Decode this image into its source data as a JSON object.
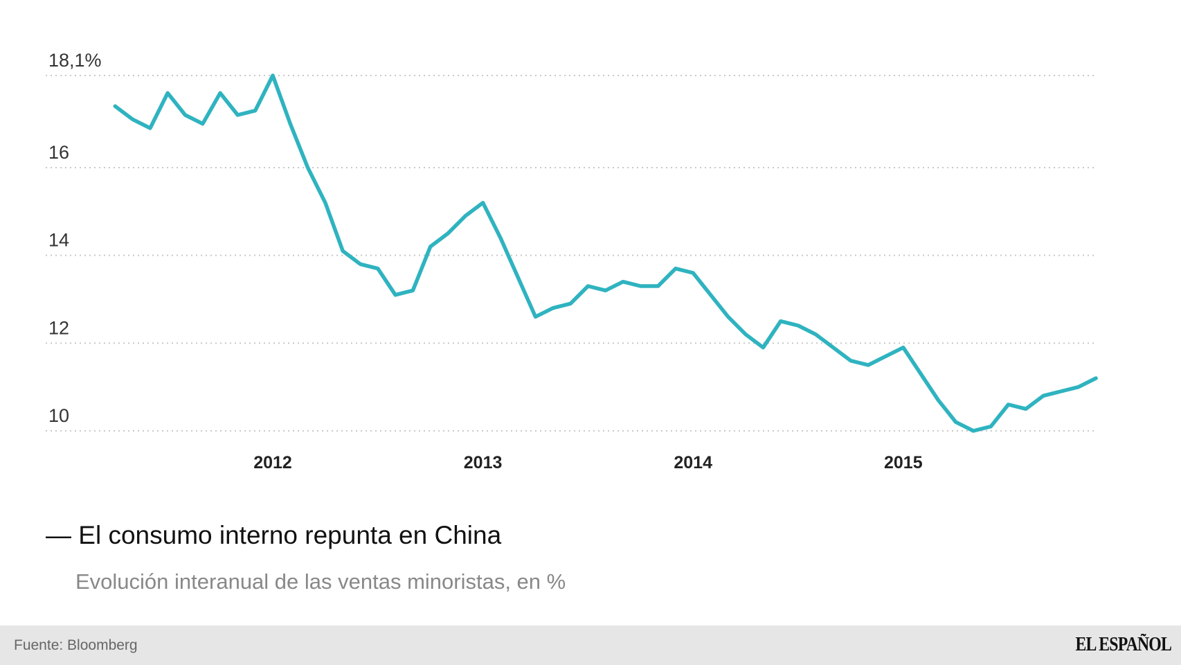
{
  "chart_data": {
    "type": "line",
    "title": "El consumo interno repunta en China",
    "subtitle": "Evolución interanual de las ventas minoristas, en %",
    "x": [
      "2011-03",
      "2011-04",
      "2011-05",
      "2011-06",
      "2011-07",
      "2011-08",
      "2011-09",
      "2011-10",
      "2011-11",
      "2011-12",
      "2012-01",
      "2012-02",
      "2012-03",
      "2012-04",
      "2012-05",
      "2012-06",
      "2012-07",
      "2012-08",
      "2012-09",
      "2012-10",
      "2012-11",
      "2012-12",
      "2013-01",
      "2013-02",
      "2013-03",
      "2013-04",
      "2013-05",
      "2013-06",
      "2013-07",
      "2013-08",
      "2013-09",
      "2013-10",
      "2013-11",
      "2013-12",
      "2014-01",
      "2014-02",
      "2014-03",
      "2014-04",
      "2014-05",
      "2014-06",
      "2014-07",
      "2014-08",
      "2014-09",
      "2014-10",
      "2014-11",
      "2014-12",
      "2015-01",
      "2015-02",
      "2015-03",
      "2015-04",
      "2015-05",
      "2015-06",
      "2015-07",
      "2015-08",
      "2015-09",
      "2015-10",
      "2015-11"
    ],
    "values": [
      17.4,
      17.1,
      16.9,
      17.7,
      17.2,
      17.0,
      17.7,
      17.2,
      17.3,
      18.1,
      17.0,
      16.0,
      15.2,
      14.1,
      13.8,
      13.7,
      13.1,
      13.2,
      14.2,
      14.5,
      14.9,
      15.2,
      14.4,
      13.5,
      12.6,
      12.8,
      12.9,
      13.3,
      13.2,
      13.4,
      13.3,
      13.3,
      13.7,
      13.6,
      13.1,
      12.6,
      12.2,
      11.9,
      12.5,
      12.4,
      12.2,
      11.9,
      11.6,
      11.5,
      11.7,
      11.9,
      11.3,
      10.7,
      10.2,
      10.0,
      10.1,
      10.6,
      10.5,
      10.8,
      10.9,
      11.0,
      11.2
    ],
    "ylim": [
      10,
      18.1
    ],
    "yticks": [
      {
        "value": 18.1,
        "label": "18,1%"
      },
      {
        "value": 16,
        "label": "16"
      },
      {
        "value": 14,
        "label": "14"
      },
      {
        "value": 12,
        "label": "12"
      },
      {
        "value": 10,
        "label": "10"
      }
    ],
    "xticks": [
      "2012",
      "2013",
      "2014",
      "2015"
    ],
    "grid": "horizontal dotted",
    "line_color": "#2fb3c0",
    "grid_color": "#c8c8c8"
  },
  "footer": {
    "source": "Fuente: Bloomberg",
    "logo": "EL ESPAÑOL"
  }
}
